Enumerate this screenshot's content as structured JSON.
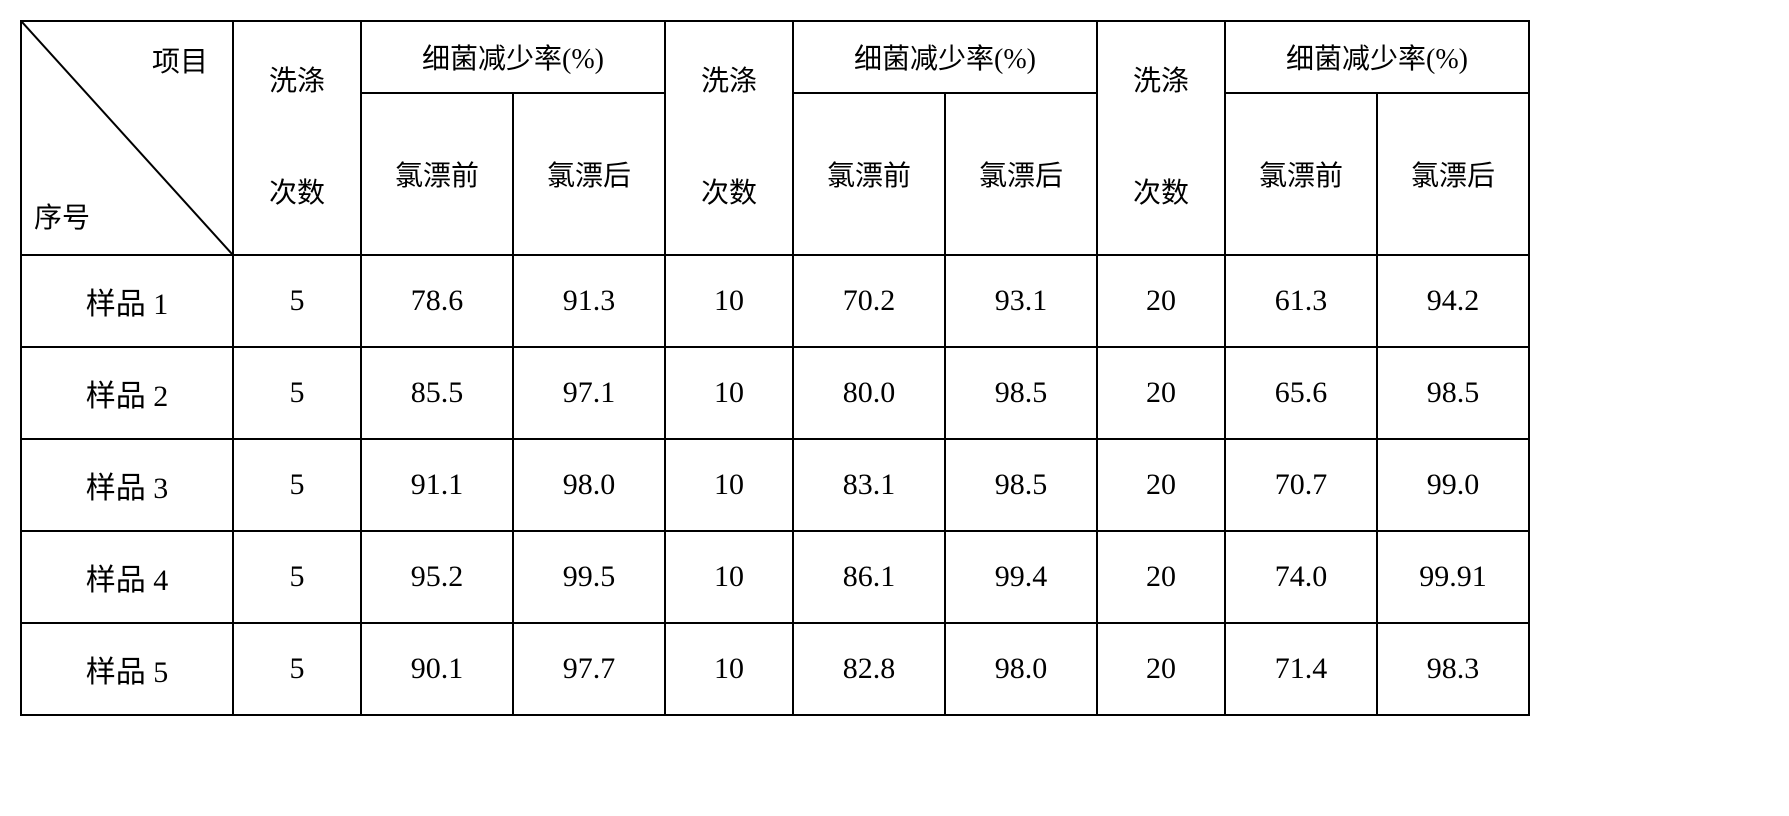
{
  "header": {
    "diagonal_top": "项目",
    "diagonal_bottom": "序号",
    "wash_count_line1": "洗涤",
    "wash_count_line2": "次数",
    "reduction_rate": "细菌减少率(%)",
    "before_chlorine": "氯漂前",
    "after_chlorine": "氯漂后"
  },
  "rows": [
    {
      "label": "样品 1",
      "w1": "5",
      "b1": "78.6",
      "a1": "91.3",
      "w2": "10",
      "b2": "70.2",
      "a2": "93.1",
      "w3": "20",
      "b3": "61.3",
      "a3": "94.2"
    },
    {
      "label": "样品 2",
      "w1": "5",
      "b1": "85.5",
      "a1": "97.1",
      "w2": "10",
      "b2": "80.0",
      "a2": "98.5",
      "w3": "20",
      "b3": "65.6",
      "a3": "98.5"
    },
    {
      "label": "样品 3",
      "w1": "5",
      "b1": "91.1",
      "a1": "98.0",
      "w2": "10",
      "b2": "83.1",
      "a2": "98.5",
      "w3": "20",
      "b3": "70.7",
      "a3": "99.0"
    },
    {
      "label": "样品 4",
      "w1": "5",
      "b1": "95.2",
      "a1": "99.5",
      "w2": "10",
      "b2": "86.1",
      "a2": "99.4",
      "w3": "20",
      "b3": "74.0",
      "a3": "99.91"
    },
    {
      "label": "样品 5",
      "w1": "5",
      "b1": "90.1",
      "a1": "97.7",
      "w2": "10",
      "b2": "82.8",
      "a2": "98.0",
      "w3": "20",
      "b3": "71.4",
      "a3": "98.3"
    }
  ],
  "style": {
    "border_color": "#000000",
    "background_color": "#ffffff",
    "header_fontsize": 28,
    "data_fontsize": 30,
    "border_width": 2
  }
}
